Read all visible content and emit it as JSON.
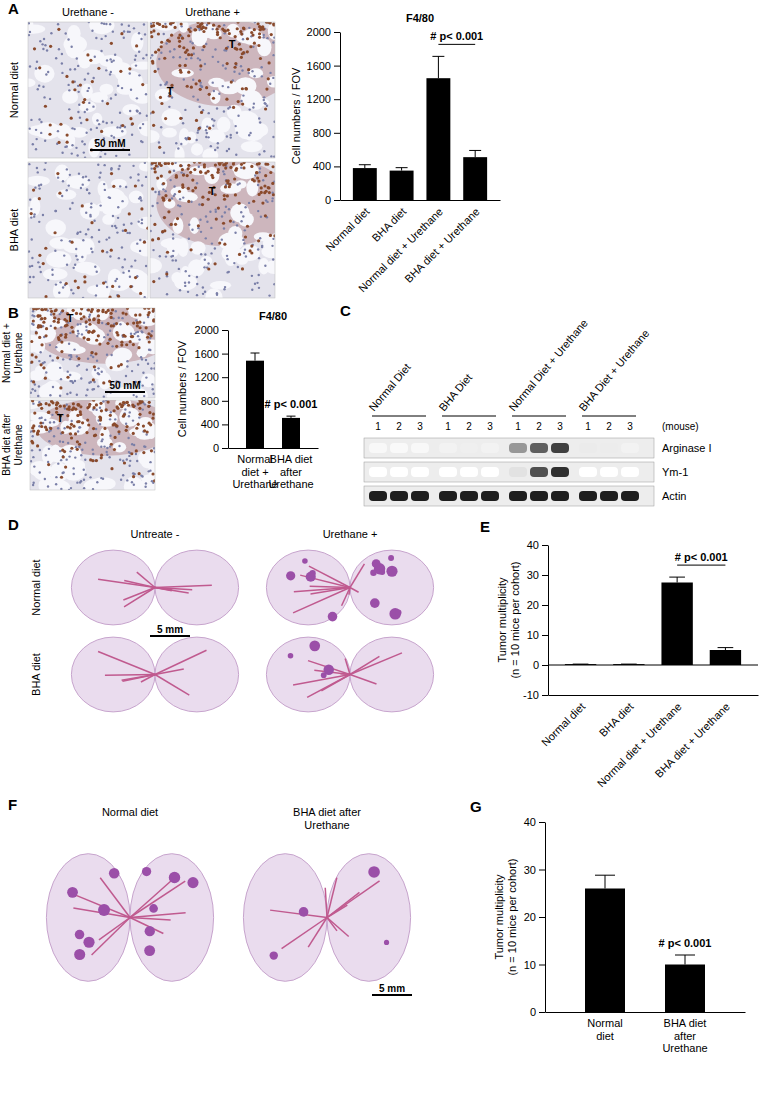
{
  "chart_data": [
    {
      "panel": "A",
      "type": "bar",
      "title": "F4/80",
      "y_label": "Cell numbers / FOV",
      "categories": [
        "Normal diet",
        "BHA diet",
        "Normal diet + Urethane",
        "BHA diet + Urethane"
      ],
      "values": [
        380,
        350,
        1450,
        510
      ],
      "errors": [
        40,
        35,
        260,
        80
      ],
      "color": "#000000",
      "ylim": [
        0,
        2000
      ],
      "yticks": [
        0,
        400,
        800,
        1200,
        1600,
        2000
      ],
      "annotation": "# p< 0.001"
    },
    {
      "panel": "B",
      "type": "bar",
      "title": "F4/80",
      "y_label": "Cell numbers / FOV",
      "categories": [
        "Normal diet + Urethane",
        "BHA diet after Urethane"
      ],
      "values": [
        1480,
        510
      ],
      "errors": [
        130,
        30
      ],
      "color": "#000000",
      "ylim": [
        0,
        2000
      ],
      "yticks": [
        0,
        400,
        800,
        1200,
        1600,
        2000
      ],
      "annotation": "# p< 0.001"
    },
    {
      "panel": "E",
      "type": "bar",
      "y_label": "Tumor multiplicity (n = 10 mice per cohort)",
      "categories": [
        "Normal diet",
        "BHA diet",
        "Normal diet + Urethane",
        "BHA diet + Urethane"
      ],
      "values": [
        0.3,
        0.3,
        27.5,
        5
      ],
      "errors": [
        0,
        0,
        1.8,
        0.8
      ],
      "color": "#000000",
      "ylim": [
        -10,
        40
      ],
      "yticks": [
        -10,
        0,
        10,
        20,
        30,
        40
      ],
      "annotation": "# p< 0.001"
    },
    {
      "panel": "G",
      "type": "bar",
      "y_label": "Tumor multiplicity (n = 10 mice per cohort)",
      "categories": [
        "Normal diet",
        "BHA diet after Urethane"
      ],
      "values": [
        26,
        10
      ],
      "errors": [
        2.8,
        2
      ],
      "color": "#000000",
      "ylim": [
        0,
        40
      ],
      "yticks": [
        0,
        10,
        20,
        30,
        40
      ],
      "annotation": "# p< 0.001"
    }
  ],
  "blot": {
    "panel": "C",
    "groups": [
      "Normal Diet",
      "BHA Diet",
      "Normal Diet + Urethane",
      "BHA Diet + Urethane"
    ],
    "mice": [
      1,
      2,
      3
    ],
    "mouse_label": "(mouse)",
    "rows": [
      {
        "label": "Arginase I",
        "intensity": [
          0.06,
          0.05,
          0.06,
          0.1,
          0.12,
          0.1,
          0.5,
          0.7,
          0.8,
          0.15,
          0.14,
          0.1
        ]
      },
      {
        "label": "Ym-1",
        "intensity": [
          0,
          0,
          0,
          0,
          0,
          0,
          0.2,
          0.75,
          0.85,
          0,
          0,
          0
        ]
      },
      {
        "label": "Actin",
        "intensity": [
          0.9,
          0.9,
          0.9,
          0.9,
          0.9,
          0.9,
          0.9,
          0.9,
          0.9,
          0.9,
          0.9,
          0.9
        ]
      }
    ]
  },
  "images": {
    "A": {
      "columns": [
        "Urethane -",
        "Urethane +"
      ],
      "rows": [
        "Normal diet",
        "BHA diet"
      ],
      "scale_bar": "50 mM",
      "tumor_label": "T"
    },
    "B": {
      "rows": [
        "Normal diet + Urethane",
        "BHA diet after Urethane"
      ],
      "scale_bar": "50 mM",
      "tumor_label": "T"
    },
    "D": {
      "panel": "D",
      "columns": [
        "Untreate -",
        "Urethane +"
      ],
      "rows": [
        "Normal diet",
        "BHA diet"
      ],
      "scale_bar": "5 mm"
    },
    "F": {
      "panel": "F",
      "columns": [
        "Normal diet",
        "BHA diet after Urethane"
      ],
      "scale_bar": "5 mm"
    }
  }
}
